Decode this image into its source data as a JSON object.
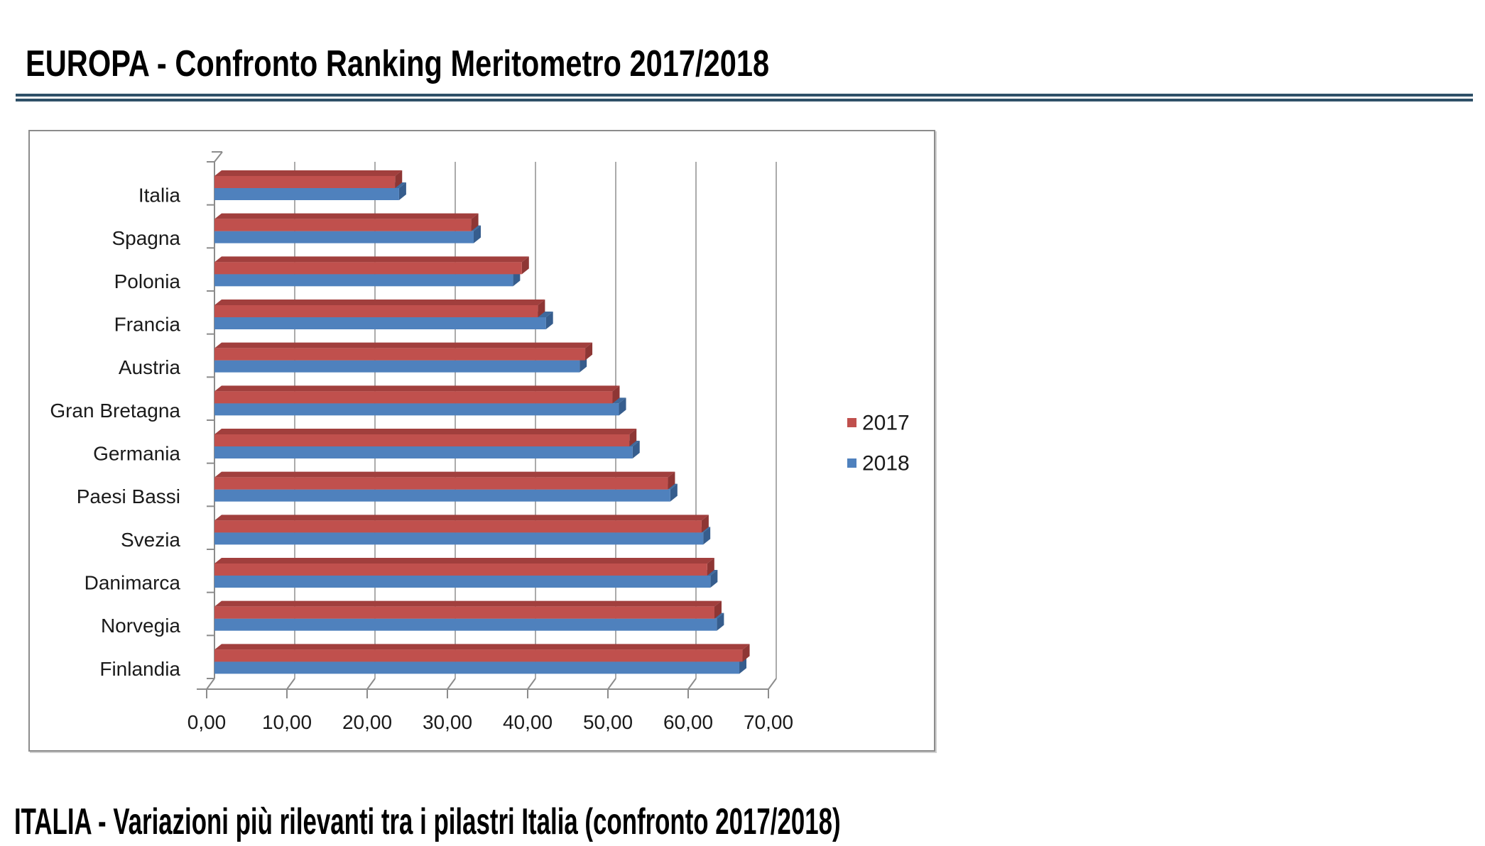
{
  "page": {
    "title": "EUROPA - Confronto Ranking Meritometro 2017/2018",
    "section_title": "ITALIA - Variazioni più rilevanti tra i pilastri Italia (confronto 2017/2018)"
  },
  "colors": {
    "title": "#000000",
    "divider": "#2F5068",
    "frame_border": "#8C8C8C",
    "gridline": "#ABABAB",
    "axis": "#8C8C8C",
    "text": "#1A1A1A"
  },
  "chart_data": {
    "type": "bar",
    "orientation": "horizontal",
    "style": "3d",
    "title": "",
    "xlabel": "",
    "ylabel": "",
    "xlim": [
      0,
      70
    ],
    "x_tick_step": 10,
    "x_ticks": [
      "0,00",
      "10,00",
      "20,00",
      "30,00",
      "40,00",
      "50,00",
      "60,00",
      "70,00"
    ],
    "grid": true,
    "legend_position": "right",
    "categories": [
      "Italia",
      "Spagna",
      "Polonia",
      "Francia",
      "Austria",
      "Gran Bretagna",
      "Germania",
      "Paesi Bassi",
      "Svezia",
      "Danimarca",
      "Norvegia",
      "Finlandia"
    ],
    "series": [
      {
        "name": "2017",
        "color": "#C0504D",
        "shade_top": "#A13F3D",
        "shade_end": "#8E3634",
        "values": [
          22.5,
          32.0,
          38.3,
          40.3,
          46.2,
          49.6,
          51.7,
          56.5,
          60.7,
          61.4,
          62.3,
          65.8
        ]
      },
      {
        "name": "2018",
        "color": "#4F81BD",
        "shade_top": "#3F6A9D",
        "shade_end": "#365D8D",
        "values": [
          23.0,
          32.3,
          37.2,
          41.3,
          45.5,
          50.4,
          52.1,
          56.8,
          60.9,
          61.8,
          62.6,
          65.4
        ]
      }
    ]
  }
}
